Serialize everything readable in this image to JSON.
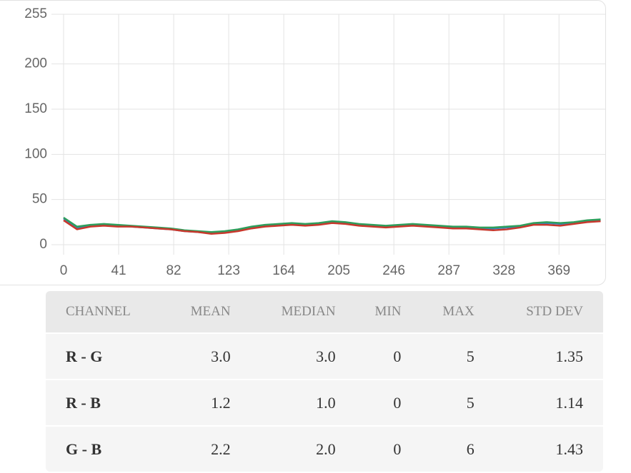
{
  "chart_data": {
    "type": "line",
    "x": [
      0,
      10,
      20,
      30,
      40,
      50,
      60,
      70,
      80,
      90,
      100,
      110,
      120,
      130,
      140,
      150,
      160,
      170,
      180,
      190,
      200,
      210,
      220,
      230,
      240,
      250,
      260,
      270,
      280,
      290,
      300,
      310,
      320,
      330,
      340,
      350,
      360,
      370,
      380,
      390,
      400
    ],
    "series": [
      {
        "color": "#3a7fc1",
        "values": [
          29,
          19,
          21,
          22,
          21,
          20,
          19,
          18,
          17,
          15,
          14,
          13,
          14,
          16,
          19,
          21,
          22,
          23,
          22,
          23,
          25,
          24,
          22,
          21,
          20,
          21,
          22,
          21,
          20,
          19,
          19,
          18,
          18,
          19,
          20,
          23,
          24,
          23,
          24,
          26,
          27
        ]
      },
      {
        "color": "#2e9e5b",
        "values": [
          30,
          20,
          22,
          23,
          22,
          21,
          20,
          19,
          18,
          16,
          15,
          14,
          15,
          17,
          20,
          22,
          23,
          24,
          23,
          24,
          26,
          25,
          23,
          22,
          21,
          22,
          23,
          22,
          21,
          20,
          20,
          19,
          19,
          20,
          21,
          24,
          25,
          24,
          25,
          27,
          28
        ]
      },
      {
        "color": "#c8382c",
        "values": [
          27,
          17,
          20,
          21,
          20,
          20,
          19,
          18,
          17,
          15,
          14,
          12,
          13,
          15,
          18,
          20,
          21,
          22,
          21,
          22,
          24,
          23,
          21,
          20,
          19,
          20,
          21,
          20,
          19,
          18,
          18,
          17,
          16,
          17,
          19,
          22,
          22,
          21,
          23,
          25,
          26
        ]
      }
    ],
    "xlim": [
      0,
      404
    ],
    "xticks": [
      0,
      41,
      82,
      123,
      164,
      205,
      246,
      287,
      328,
      369
    ],
    "ylim": [
      0,
      255
    ],
    "yticks": [
      0,
      50,
      100,
      150,
      200,
      255
    ],
    "grid": true
  },
  "table": {
    "header": [
      "CHANNEL",
      "MEAN",
      "MEDIAN",
      "MIN",
      "MAX",
      "STD DEV"
    ],
    "rows": [
      [
        "R - G",
        "3.0",
        "3.0",
        "0",
        "5",
        "1.35"
      ],
      [
        "R - B",
        "1.2",
        "1.0",
        "0",
        "5",
        "1.14"
      ],
      [
        "G - B",
        "2.2",
        "2.0",
        "0",
        "6",
        "1.43"
      ]
    ]
  }
}
